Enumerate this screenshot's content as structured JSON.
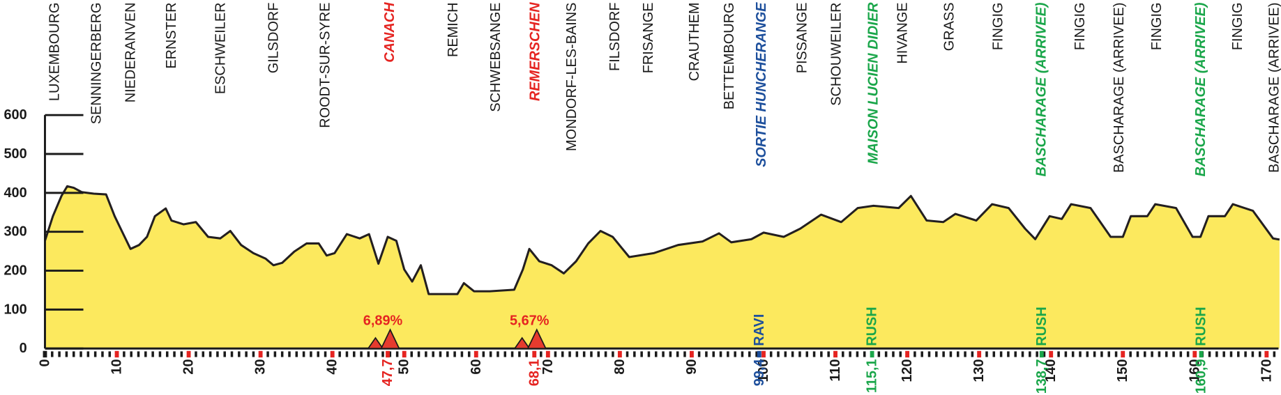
{
  "chart_data": {
    "type": "area",
    "color": "#fce95e",
    "line_color": "#231f20",
    "xlim": [
      0,
      172
    ],
    "ylim": [
      0,
      600
    ],
    "yticks": [
      0,
      100,
      200,
      300,
      400,
      500,
      600
    ],
    "xticks": [
      0,
      10,
      20,
      30,
      40,
      50,
      60,
      70,
      80,
      90,
      100,
      110,
      120,
      130,
      140,
      150,
      160,
      170
    ],
    "x": [
      0,
      1.1,
      2.3,
      3.1,
      4,
      5.1,
      6.8,
      8.5,
      9.7,
      10.8,
      11.9,
      13.1,
      14.2,
      15.3,
      16.8,
      17.6,
      19.3,
      21,
      22.7,
      24.4,
      25.8,
      27.3,
      29,
      30.7,
      31.8,
      33,
      34.7,
      36.4,
      38.1,
      39.2,
      40.3,
      42,
      43.8,
      45.1,
      46.4,
      47.7,
      48.9,
      50,
      51.1,
      52.3,
      53.4,
      55.7,
      57.4,
      58.3,
      59.7,
      61.9,
      65.3,
      66.5,
      67.4,
      68.8,
      70.5,
      72.2,
      73.9,
      75.6,
      77.3,
      79,
      81.3,
      84.7,
      88.1,
      91.5,
      93.8,
      95.5,
      98.3,
      100,
      102.8,
      105.1,
      108,
      110.8,
      113.1,
      115.3,
      118.8,
      120.5,
      122.7,
      125,
      126.7,
      129.6,
      131.8,
      134.1,
      136.4,
      137.8,
      139.8,
      141.5,
      142.8,
      145.5,
      148.3,
      150,
      151.1,
      153.4,
      154.5,
      157.4,
      159.7,
      160.8,
      161.9,
      164.2,
      165.3,
      168.1,
      170.9,
      171.8
    ],
    "values": [
      277,
      340,
      392,
      417,
      413,
      402,
      398,
      396,
      340,
      298,
      256,
      266,
      287,
      340,
      360,
      329,
      319,
      325,
      287,
      283,
      302,
      266,
      245,
      231,
      214,
      220,
      249,
      270,
      270,
      239,
      245,
      294,
      283,
      294,
      218,
      287,
      277,
      203,
      172,
      214,
      140,
      140,
      140,
      168,
      147,
      147,
      151,
      203,
      256,
      224,
      214,
      193,
      224,
      270,
      302,
      287,
      235,
      245,
      266,
      275,
      296,
      273,
      281,
      298,
      287,
      308,
      344,
      325,
      361,
      367,
      361,
      392,
      329,
      325,
      346,
      329,
      371,
      361,
      308,
      281,
      340,
      333,
      371,
      361,
      287,
      287,
      340,
      340,
      371,
      361,
      287,
      287,
      340,
      340,
      371,
      354,
      283,
      280
    ],
    "places": [
      {
        "name": "LUXEMBOURG",
        "color": "#1a1a1a",
        "italic": false
      },
      {
        "name": "SENNINGERBERG",
        "color": "#1a1a1a",
        "italic": false
      },
      {
        "name": "NIEDERANVEN",
        "color": "#1a1a1a",
        "italic": false
      },
      {
        "name": "ERNSTER",
        "color": "#1a1a1a",
        "italic": false
      },
      {
        "name": "ESCHWEILER",
        "color": "#1a1a1a",
        "italic": false
      },
      {
        "name": "GILSDORF",
        "color": "#1a1a1a",
        "italic": false
      },
      {
        "name": "ROODT-SUR-SYRE",
        "color": "#1a1a1a",
        "italic": false
      },
      {
        "name": "CANACH",
        "color": "#e52421",
        "italic": true
      },
      {
        "name": "REMICH",
        "color": "#1a1a1a",
        "italic": false
      },
      {
        "name": "SCHWEBSANGE",
        "color": "#1a1a1a",
        "italic": false
      },
      {
        "name": "REMERSCHEN",
        "color": "#e52421",
        "italic": true
      },
      {
        "name": "MONDORF-LES-BAINS",
        "color": "#1a1a1a",
        "italic": false
      },
      {
        "name": "FILSDORF",
        "color": "#1a1a1a",
        "italic": false
      },
      {
        "name": "FRISANGE",
        "color": "#1a1a1a",
        "italic": false
      },
      {
        "name": "CRAUTHEM",
        "color": "#1a1a1a",
        "italic": false
      },
      {
        "name": "BETTEMBOURG",
        "color": "#1a1a1a",
        "italic": false
      },
      {
        "name": "SORTIE HUNCHERANGE",
        "color": "#1d4f9c",
        "italic": true
      },
      {
        "name": "PISSANGE",
        "color": "#1a1a1a",
        "italic": false
      },
      {
        "name": "SCHOUWEILER",
        "color": "#1a1a1a",
        "italic": false
      },
      {
        "name": "MAISON LUCIEN DIDIER",
        "color": "#1aa64a",
        "italic": true
      },
      {
        "name": "HIVANGE",
        "color": "#1a1a1a",
        "italic": false
      },
      {
        "name": "GRASS",
        "color": "#1a1a1a",
        "italic": false
      },
      {
        "name": "FINGIG",
        "color": "#1a1a1a",
        "italic": false
      },
      {
        "name": "BASCHARAGE (ARRIVEE)",
        "color": "#1aa64a",
        "italic": true
      },
      {
        "name": "FINGIG",
        "color": "#1a1a1a",
        "italic": false
      },
      {
        "name": "BASCHARAGE (ARRIVEE)",
        "color": "#1a1a1a",
        "italic": false
      },
      {
        "name": "FINGIG",
        "color": "#1a1a1a",
        "italic": false
      },
      {
        "name": "BASCHARAGE (ARRIVEE)",
        "color": "#1aa64a",
        "italic": true
      },
      {
        "name": "FINGIG",
        "color": "#1a1a1a",
        "italic": false
      },
      {
        "name": "BASCHARAGE (ARRIVEE)",
        "color": "#1a1a1a",
        "italic": false
      }
    ],
    "points": [
      {
        "km": {
          "value": 47.7,
          "label": "47,7"
        },
        "color": "#e52421",
        "climb": "6,89%"
      },
      {
        "km": {
          "value": 68.1,
          "label": "68,1"
        },
        "color": "#e52421",
        "climb": "5,67%"
      },
      {
        "km": {
          "value": 99.4,
          "label": "99,4"
        },
        "color": "#1d4f9c",
        "tag": "RAVI"
      },
      {
        "km": {
          "value": 115.1,
          "label": "115,1"
        },
        "color": "#1aa64a",
        "tag": "RUSH"
      },
      {
        "km": {
          "value": 138.7,
          "label": "138,7"
        },
        "color": "#1aa64a",
        "tag": "RUSH"
      },
      {
        "km": {
          "value": 160.9,
          "label": "160,9"
        },
        "color": "#1aa64a",
        "tag": "RUSH"
      }
    ]
  }
}
